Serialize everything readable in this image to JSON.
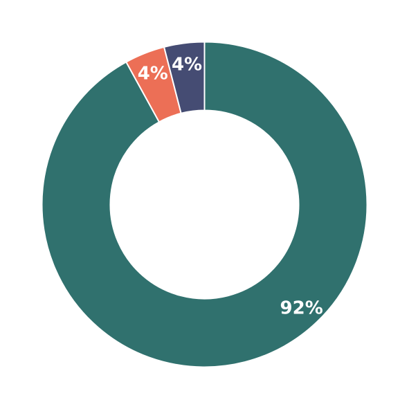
{
  "chart_data": {
    "type": "pie",
    "variant": "donut",
    "slices": [
      {
        "label": "92%",
        "value": 92,
        "color": "#30716e"
      },
      {
        "label": "4%",
        "value": 4,
        "color": "#ec6f56"
      },
      {
        "label": "4%",
        "value": 4,
        "color": "#454c73"
      }
    ],
    "start": "12 o'clock",
    "direction": "counter-clockwise",
    "legend": "none"
  }
}
